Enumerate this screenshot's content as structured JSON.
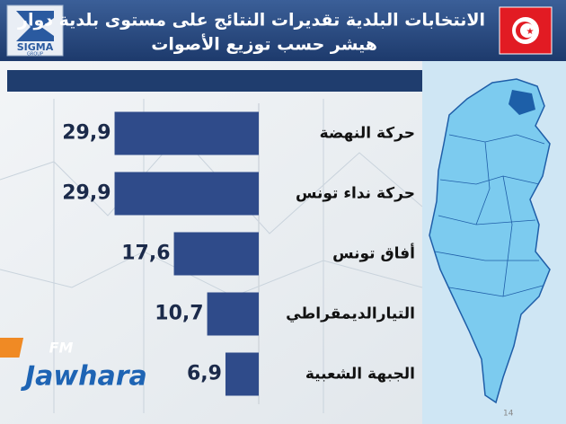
{
  "chart_data": {
    "type": "bar",
    "orientation": "horizontal",
    "title": "الانتخابات البلدية تقديرات النتائج على مستوى بلدية دوار",
    "subtitle": "هيشر حسب توزيع الأصوات",
    "categories": [
      "حركة النهضة",
      "حركة نداء تونس",
      "أفاق تونس",
      "التيارالديمقراطي",
      "الجبهة الشعبية"
    ],
    "values": [
      29.9,
      29.9,
      17.6,
      10.7,
      6.9
    ],
    "value_labels": [
      "29,9",
      "29,9",
      "17,6",
      "10,7",
      "6,9"
    ],
    "color": "#2f4b8a",
    "xlim": [
      0,
      30
    ]
  },
  "logos": {
    "sigma": "SIGMA",
    "sigma_sub": "GROUP",
    "station": "Jawhara",
    "station_badge": "FM"
  },
  "page_number": "14"
}
